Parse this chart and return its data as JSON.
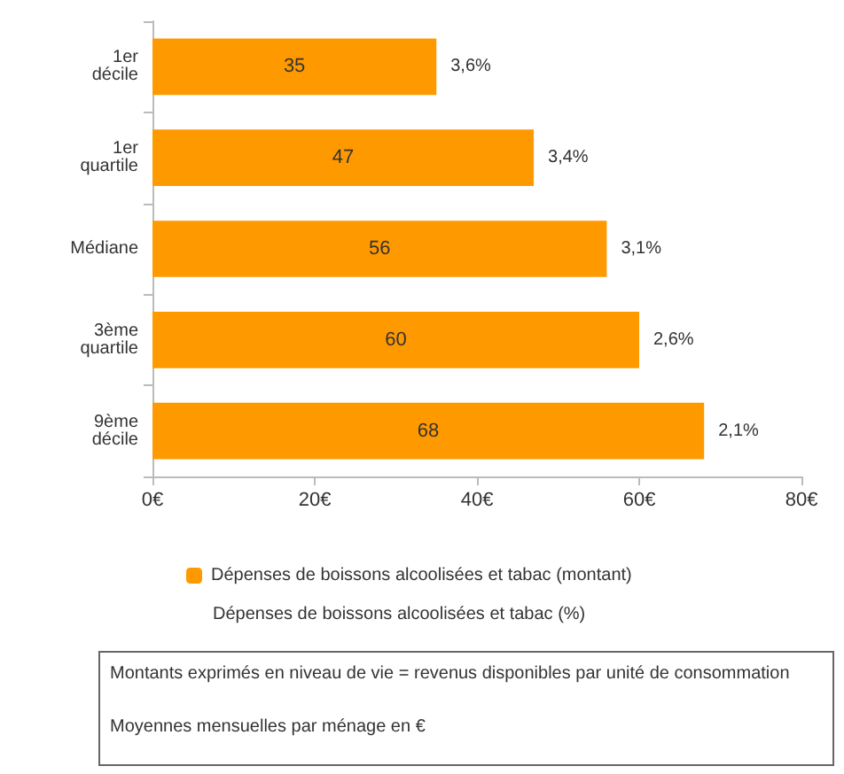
{
  "chart_data": {
    "type": "bar",
    "orientation": "horizontal",
    "categories": [
      "1er\ndécile",
      "1er\nquartile",
      "Médiane",
      "3ème\nquartile",
      "9ème\ndécile"
    ],
    "series": [
      {
        "name": "Dépenses de boissons alcoolisées et tabac (montant)",
        "color": "#ff9900",
        "values": [
          35,
          47,
          56,
          60,
          68
        ]
      }
    ],
    "data_labels": true,
    "xlim": [
      0,
      80
    ],
    "xticks": [
      {
        "value": 0,
        "label": "0€"
      },
      {
        "value": 20,
        "label": "20€"
      },
      {
        "value": 40,
        "label": "40€"
      },
      {
        "value": 60,
        "label": "60€"
      },
      {
        "value": 80,
        "label": "80€"
      }
    ],
    "grid": false,
    "legend": "bottom",
    "annotations": [
      {
        "text": "3,6%",
        "x": 35,
        "y": "1er\ndécile"
      },
      {
        "text": "3,4%",
        "x": 47,
        "y": "1er\nquartile"
      },
      {
        "text": "3,1%",
        "x": 56,
        "y": "Médiane"
      },
      {
        "text": "2,6%",
        "x": 60,
        "y": "3ème\nquartile"
      },
      {
        "text": "2,1%",
        "x": 68,
        "y": "9ème\ndécile"
      },
      "Dépenses de boissons alcoolisées et tabac (%)",
      "Montants exprimés en niveau de vie = revenus disponibles par unité de consommation",
      "Moyennes mensuelles par ménage en €"
    ]
  }
}
